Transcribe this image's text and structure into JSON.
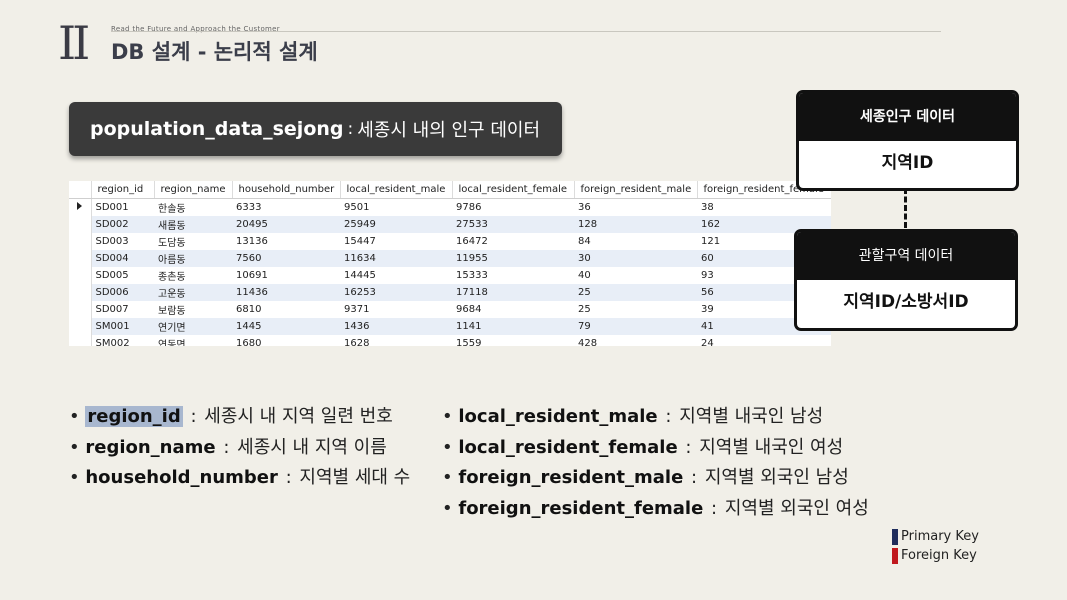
{
  "header": {
    "section_numeral": "II",
    "tagline": "Read the Future and Approach the Customer",
    "title": "DB 설계 - 논리적 설계"
  },
  "table_banner": {
    "name": "population_data_sejong",
    "separator": ":",
    "description": "세종시 내의 인구 데이터"
  },
  "grid": {
    "columns": [
      "region_id",
      "region_name",
      "household_number",
      "local_resident_male",
      "local_resident_female",
      "foreign_resident_male",
      "foreign_resident_female"
    ],
    "rows": [
      [
        "SD001",
        "한솔동",
        "6333",
        "9501",
        "9786",
        "36",
        "38"
      ],
      [
        "SD002",
        "새롬동",
        "20495",
        "25949",
        "27533",
        "128",
        "162"
      ],
      [
        "SD003",
        "도담동",
        "13136",
        "15447",
        "16472",
        "84",
        "121"
      ],
      [
        "SD004",
        "아름동",
        "7560",
        "11634",
        "11955",
        "30",
        "60"
      ],
      [
        "SD005",
        "종촌동",
        "10691",
        "14445",
        "15333",
        "40",
        "93"
      ],
      [
        "SD006",
        "고운동",
        "11436",
        "16253",
        "17118",
        "25",
        "56"
      ],
      [
        "SD007",
        "보람동",
        "6810",
        "9371",
        "9684",
        "25",
        "39"
      ],
      [
        "SM001",
        "연기면",
        "1445",
        "1436",
        "1141",
        "79",
        "41"
      ],
      [
        "SM002",
        "연동면",
        "1680",
        "1628",
        "1559",
        "428",
        "24"
      ]
    ]
  },
  "entities": [
    {
      "header": "세종인구 데이터",
      "key": "지역ID"
    },
    {
      "header": "관할구역 데이터",
      "key": "지역ID/소방서ID"
    }
  ],
  "fields_left": [
    {
      "name": "region_id",
      "desc": "세종시 내 지역 일련 번호",
      "highlighted": true
    },
    {
      "name": "region_name",
      "desc": "세종시 내 지역 이름",
      "highlighted": false
    },
    {
      "name": "household_number",
      "desc": "지역별 세대 수",
      "highlighted": false
    }
  ],
  "fields_right": [
    {
      "name": "local_resident_male",
      "desc": "지역별 내국인 남성"
    },
    {
      "name": "local_resident_female",
      "desc": "지역별 내국인 여성"
    },
    {
      "name": "foreign_resident_male",
      "desc": "지역별 외국인 남성"
    },
    {
      "name": "foreign_resident_female",
      "desc": "지역별 외국인 여성"
    }
  ],
  "field_separator": ":",
  "bullet": "•",
  "legend": [
    {
      "label": "Primary Key",
      "color": "#1f2d5c"
    },
    {
      "label": "Foreign Key",
      "color": "#c0181e"
    }
  ]
}
